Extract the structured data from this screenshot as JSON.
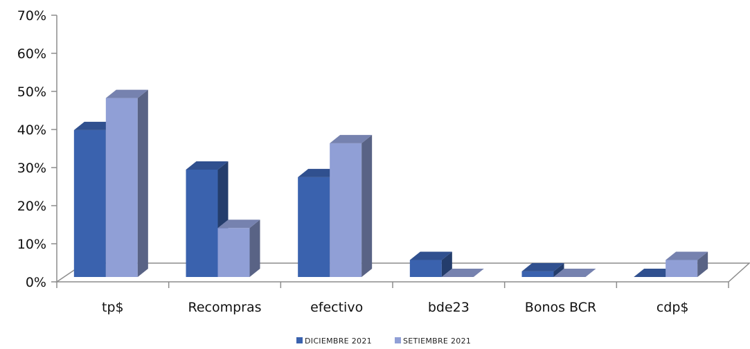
{
  "chart_data": {
    "type": "bar",
    "variant": "3d-clustered-column",
    "title": "",
    "xlabel": "",
    "ylabel": "",
    "categories": [
      "tp$",
      "Recompras",
      "efectivo",
      "bde23",
      "Bonos BCR",
      "cdp$"
    ],
    "series": [
      {
        "name": "DICIEMBRE  2021",
        "values": [
          39,
          28.5,
          26.5,
          4.5,
          1.5,
          0
        ],
        "color": "#3a62ae"
      },
      {
        "name": "SETIEMBRE  2021",
        "values": [
          47.5,
          13,
          35.5,
          0,
          0,
          4.5
        ],
        "color": "#909fd6"
      }
    ],
    "y_ticks": [
      "0%",
      "10%",
      "20%",
      "30%",
      "40%",
      "50%",
      "60%",
      "70%"
    ],
    "ylim": [
      0,
      70
    ],
    "legend_position": "bottom",
    "grid": false
  }
}
